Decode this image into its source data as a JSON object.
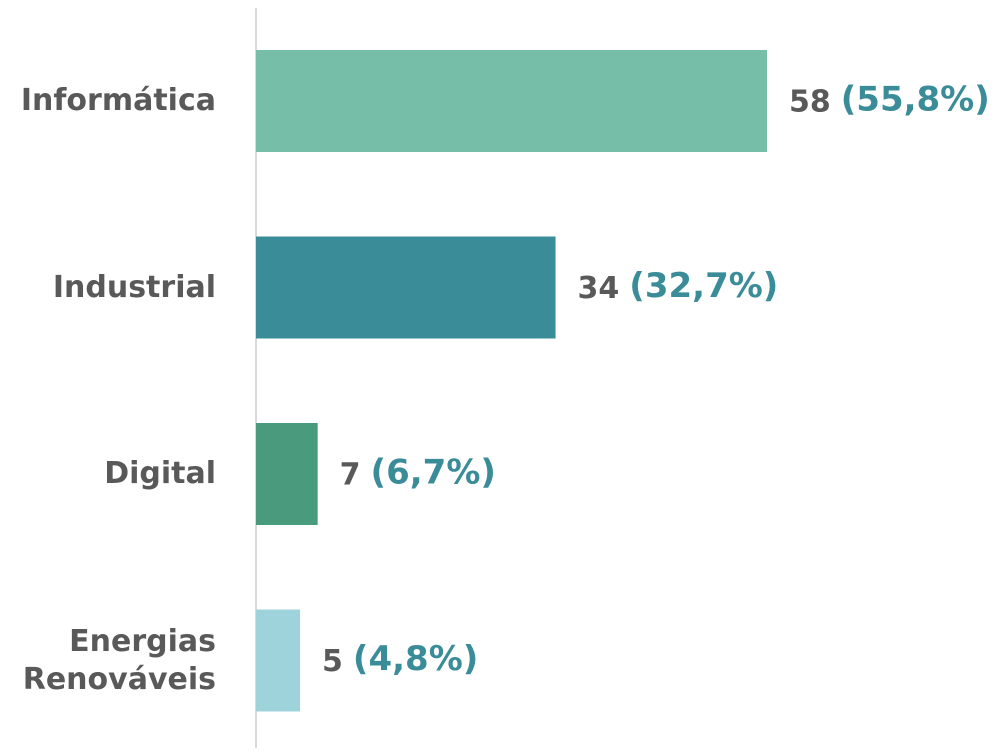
{
  "chart_data": {
    "type": "bar",
    "orientation": "horizontal",
    "categories": [
      "Informática",
      "Industrial",
      "Digital",
      "Energias Renováveis"
    ],
    "values": [
      58,
      34,
      7,
      5
    ],
    "share_labels": [
      "(55,8%)",
      "(32,7%)",
      "(6,7%)",
      "(4,8%)"
    ],
    "colors": [
      "#77bea8",
      "#3a8d98",
      "#4a9a7e",
      "#9fd3dc"
    ]
  }
}
